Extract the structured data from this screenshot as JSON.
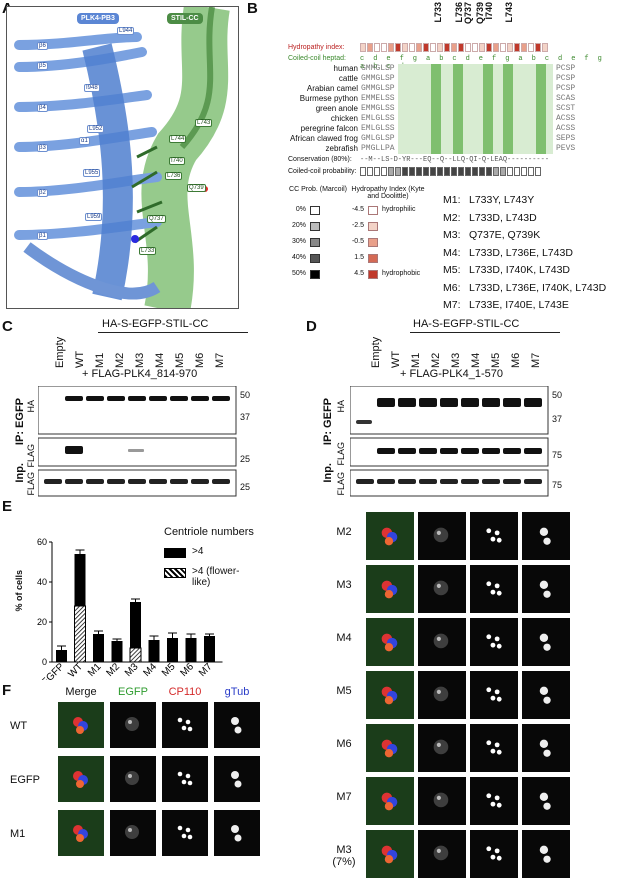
{
  "panels": {
    "A": "A",
    "B": "B",
    "C": "C",
    "D": "D",
    "E": "E",
    "F": "F"
  },
  "panel_a": {
    "tag_left": "PLK4-PB3",
    "tag_right": "STIL-CC",
    "strands": [
      "β6",
      "β5",
      "β4",
      "β3",
      "β2",
      "β1",
      "α1"
    ],
    "residues_blue": [
      "L944",
      "I948",
      "L952",
      "L955",
      "L959"
    ],
    "residues_green": [
      "L743",
      "L744",
      "I740",
      "Q739",
      "L736",
      "Q737",
      "L733"
    ]
  },
  "panel_b": {
    "top_residues": [
      "L733",
      "L736",
      "Q737",
      "Q739",
      "I740",
      "L743"
    ],
    "hydropathy_label": "Hydropathy index:",
    "heptad_label": "Coiled-coil heptad:",
    "heptad": "c d e f g a b c d e f g a b c d e f g a b c d",
    "species": [
      "human",
      "cattle",
      "Arabian camel",
      "Burmese python",
      "green anole",
      "chicken",
      "peregrine falcon",
      "African clawed frog",
      "zebrafish"
    ],
    "sequences_left": [
      "GMMGLSP",
      "GMMGLSP",
      "GMMGLSP",
      "EMMELSS",
      "EMMGLSS",
      "EMLGLSS",
      "EMLGLSS",
      "GMLGLSP",
      "PMGLLPA"
    ],
    "sequences_right": [
      "PCSP",
      "PCSP",
      "PCSP",
      "SCAS",
      "SCST",
      "ACSS",
      "ACSS",
      "SEPS",
      "PEVS"
    ],
    "conservation_label": "Conservation (80%):",
    "conservation": "--M--LS-D-YR---EQ--Q--LLQ-QI-Q-LEAQ----------",
    "cc_prob_label": "Coiled-coil probability:",
    "legend_cc_title": "CC Prob. (Marcoil)",
    "legend_hyd_title": "Hydropathy Index (Kyte and Doolittle)",
    "legend_cc": [
      "0%",
      "20%",
      "30%",
      "40%",
      "50%"
    ],
    "legend_hyd": [
      "-4.5",
      "-2.5",
      "-0.5",
      "1.5",
      "4.5"
    ],
    "legend_hyd_words": {
      "low": "hydrophilic",
      "high": "hydrophobic"
    },
    "mutants": [
      {
        "name": "M1:",
        "muts": "L733Y, L743Y"
      },
      {
        "name": "M2:",
        "muts": "L733D, L743D"
      },
      {
        "name": "M3:",
        "muts": "Q737E, Q739K"
      },
      {
        "name": "M4:",
        "muts": "L733D, L736E, L743D"
      },
      {
        "name": "M5:",
        "muts": "L733D, I740K, L743D"
      },
      {
        "name": "M6:",
        "muts": "L733D, L736E, I740K, L743D"
      },
      {
        "name": "M7:",
        "muts": "L733E, I740E, L743E"
      }
    ]
  },
  "panel_c": {
    "header": "HA-S-EGFP-STIL-CC",
    "lanes": [
      "Empty",
      "WT",
      "M1",
      "M2",
      "M3",
      "M4",
      "M5",
      "M6",
      "M7"
    ],
    "plus": "+ FLAG-PLK4_814-970",
    "ip": "IP: EGFP",
    "inp": "Inp.",
    "rows": [
      "HA",
      "FLAG",
      "FLAG"
    ],
    "mw": [
      "50",
      "37",
      "25",
      "25"
    ]
  },
  "panel_d": {
    "header": "HA-S-EGFP-STIL-CC",
    "lanes": [
      "Empty",
      "WT",
      "M1",
      "M2",
      "M3",
      "M4",
      "M5",
      "M6",
      "M7"
    ],
    "plus": "+ FLAG-PLK4_1-570",
    "ip": "IP: GEFP",
    "inp": "Inp.",
    "rows": [
      "HA",
      "FLAG",
      "FLAG"
    ],
    "mw": [
      "50",
      "37",
      "75",
      "75"
    ]
  },
  "panel_e": {
    "legend_title": "Centriole numbers",
    "legend": [
      ">4",
      ">4 (flower-like)"
    ],
    "ylabel": "% of cells",
    "yticks": [
      "0",
      "20",
      "40",
      "60"
    ]
  },
  "chart_data": {
    "type": "bar",
    "categories": [
      "EGFP",
      "WT",
      "M1",
      "M2",
      "M3",
      "M4",
      "M5",
      "M6",
      "M7"
    ],
    "series": [
      {
        "name": ">4",
        "values": [
          6,
          54,
          14,
          10.5,
          30,
          11,
          12,
          12,
          13
        ]
      },
      {
        "name": ">4 (flower-like)",
        "values": [
          0,
          28,
          0,
          0,
          7,
          0,
          0,
          0,
          0
        ]
      }
    ],
    "errors": [
      2,
      2,
      1.5,
      1,
      1.5,
      2,
      2.5,
      2,
      1
    ],
    "ylabel": "% of cells",
    "ylim": [
      0,
      60
    ]
  },
  "panel_f": {
    "cols": [
      "Merge",
      "EGFP",
      "CP110",
      "gTub"
    ],
    "col_colors": [
      "#111111",
      "#2e9b2e",
      "#d42a2a",
      "#2a3cc8"
    ],
    "rows_left": [
      "WT",
      "EGFP",
      "M1"
    ],
    "rows_right": [
      "M2",
      "M3",
      "M4",
      "M5",
      "M6",
      "M7",
      "M3\n(7%)"
    ]
  },
  "colors": {
    "blue": "#6f95d6",
    "green": "#6aa860",
    "red": "#c0392b"
  }
}
